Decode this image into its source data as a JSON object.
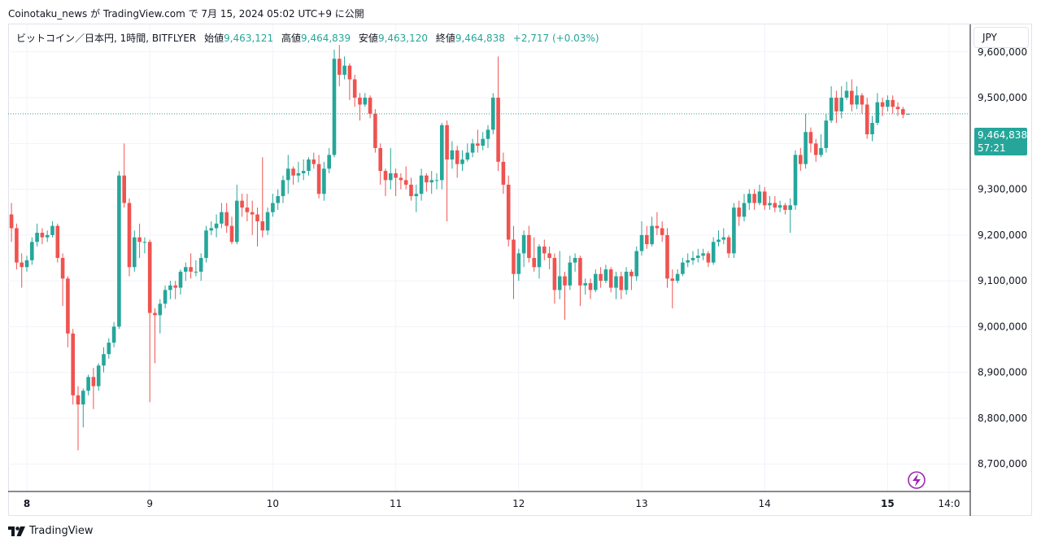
{
  "header": {
    "text": "Coinotaku_news が TradingView.com で 7月 15, 2024 05:02 UTC+9 に公開"
  },
  "legend": {
    "symbol": "ビットコイン／日本円, 1時間, BITFLYER",
    "open_label": "始値",
    "open": "9,463,121",
    "high_label": "高値",
    "high": "9,464,839",
    "low_label": "安値",
    "low": "9,463,120",
    "close_label": "終値",
    "close": "9,464,838",
    "change": "+2,717 (+0.03%)"
  },
  "currency_button": "JPY",
  "price_tag": {
    "price": "9,464,838",
    "countdown": "57:21"
  },
  "footer": {
    "brand": "TradingView",
    "logo_icon": "tradingview-logo-icon"
  },
  "colors": {
    "up": "#26a69a",
    "down": "#ef5350",
    "grid": "#f0f3fa",
    "axis": "#131722"
  },
  "chart_data": {
    "type": "candlestick",
    "title": "ビットコイン／日本円, 1時間, BITFLYER",
    "y_tick_labels": [
      "9,600,000",
      "9,500,000",
      "9,400,000",
      "9,300,000",
      "9,200,000",
      "9,100,000",
      "9,000,000",
      "8,900,000",
      "8,800,000",
      "8,700,000"
    ],
    "y_ticks": [
      9600000,
      9500000,
      9400000,
      9300000,
      9200000,
      9100000,
      9000000,
      8900000,
      8800000,
      8700000
    ],
    "ylim": [
      8640000,
      9660000
    ],
    "x_tick_labels": [
      "8",
      "9",
      "10",
      "11",
      "12",
      "13",
      "14",
      "15",
      "14:0"
    ],
    "x_tick_positions_hours": [
      0,
      24,
      48,
      72,
      96,
      120,
      144,
      168,
      180
    ],
    "bold_x_labels": [
      "8",
      "15"
    ],
    "last_price": 9464838,
    "candles": [
      [
        9245000,
        9215000,
        9270000,
        9185000
      ],
      [
        9215000,
        9140000,
        9225000,
        9125000
      ],
      [
        9140000,
        9130000,
        9160000,
        9085000
      ],
      [
        9130000,
        9145000,
        9155000,
        9120000
      ],
      [
        9145000,
        9185000,
        9195000,
        9135000
      ],
      [
        9185000,
        9205000,
        9225000,
        9175000
      ],
      [
        9205000,
        9195000,
        9215000,
        9180000
      ],
      [
        9195000,
        9200000,
        9210000,
        9185000
      ],
      [
        9200000,
        9220000,
        9230000,
        9195000
      ],
      [
        9220000,
        9150000,
        9225000,
        9140000
      ],
      [
        9150000,
        9105000,
        9160000,
        9045000
      ],
      [
        9105000,
        8985000,
        9110000,
        8955000
      ],
      [
        8985000,
        8850000,
        8995000,
        8830000
      ],
      [
        8850000,
        8830000,
        8870000,
        8730000
      ],
      [
        8830000,
        8860000,
        8865000,
        8780000
      ],
      [
        8860000,
        8890000,
        8895000,
        8850000
      ],
      [
        8890000,
        8870000,
        8910000,
        8820000
      ],
      [
        8870000,
        8915000,
        8920000,
        8860000
      ],
      [
        8915000,
        8940000,
        8955000,
        8900000
      ],
      [
        8940000,
        8965000,
        8975000,
        8930000
      ],
      [
        8965000,
        9000000,
        9010000,
        8955000
      ],
      [
        9000000,
        9330000,
        9340000,
        8995000
      ],
      [
        9330000,
        9270000,
        9400000,
        9260000
      ],
      [
        9270000,
        9130000,
        9280000,
        9110000
      ],
      [
        9130000,
        9195000,
        9210000,
        9120000
      ],
      [
        9195000,
        9185000,
        9225000,
        9150000
      ],
      [
        9185000,
        9185000,
        9195000,
        9160000
      ],
      [
        9185000,
        9030000,
        9190000,
        8835000
      ],
      [
        9030000,
        9025000,
        9040000,
        8920000
      ],
      [
        9025000,
        9050000,
        9060000,
        8985000
      ],
      [
        9050000,
        9080000,
        9090000,
        9040000
      ],
      [
        9080000,
        9090000,
        9100000,
        9060000
      ],
      [
        9090000,
        9085000,
        9100000,
        9060000
      ],
      [
        9085000,
        9120000,
        9125000,
        9070000
      ],
      [
        9120000,
        9130000,
        9140000,
        9100000
      ],
      [
        9130000,
        9120000,
        9160000,
        9105000
      ],
      [
        9120000,
        9120000,
        9145000,
        9110000
      ],
      [
        9120000,
        9150000,
        9160000,
        9100000
      ],
      [
        9150000,
        9210000,
        9220000,
        9140000
      ],
      [
        9210000,
        9215000,
        9230000,
        9200000
      ],
      [
        9215000,
        9225000,
        9245000,
        9195000
      ],
      [
        9225000,
        9250000,
        9270000,
        9215000
      ],
      [
        9250000,
        9220000,
        9270000,
        9205000
      ],
      [
        9220000,
        9185000,
        9240000,
        9180000
      ],
      [
        9185000,
        9275000,
        9310000,
        9180000
      ],
      [
        9275000,
        9260000,
        9290000,
        9240000
      ],
      [
        9260000,
        9250000,
        9290000,
        9230000
      ],
      [
        9250000,
        9245000,
        9275000,
        9200000
      ],
      [
        9245000,
        9230000,
        9260000,
        9175000
      ],
      [
        9230000,
        9210000,
        9370000,
        9195000
      ],
      [
        9210000,
        9250000,
        9260000,
        9200000
      ],
      [
        9250000,
        9270000,
        9290000,
        9240000
      ],
      [
        9270000,
        9285000,
        9300000,
        9255000
      ],
      [
        9285000,
        9320000,
        9330000,
        9270000
      ],
      [
        9320000,
        9345000,
        9375000,
        9290000
      ],
      [
        9345000,
        9330000,
        9350000,
        9310000
      ],
      [
        9330000,
        9335000,
        9360000,
        9315000
      ],
      [
        9335000,
        9340000,
        9365000,
        9320000
      ],
      [
        9340000,
        9365000,
        9370000,
        9330000
      ],
      [
        9365000,
        9355000,
        9380000,
        9345000
      ],
      [
        9355000,
        9290000,
        9375000,
        9280000
      ],
      [
        9290000,
        9345000,
        9360000,
        9275000
      ],
      [
        9345000,
        9375000,
        9390000,
        9335000
      ],
      [
        9375000,
        9585000,
        9605000,
        9370000
      ],
      [
        9585000,
        9550000,
        9615000,
        9525000
      ],
      [
        9550000,
        9570000,
        9590000,
        9540000
      ],
      [
        9570000,
        9540000,
        9575000,
        9495000
      ],
      [
        9540000,
        9500000,
        9550000,
        9480000
      ],
      [
        9500000,
        9485000,
        9510000,
        9450000
      ],
      [
        9485000,
        9500000,
        9510000,
        9480000
      ],
      [
        9500000,
        9465000,
        9505000,
        9455000
      ],
      [
        9465000,
        9390000,
        9475000,
        9380000
      ],
      [
        9390000,
        9340000,
        9400000,
        9310000
      ],
      [
        9340000,
        9320000,
        9345000,
        9285000
      ],
      [
        9320000,
        9335000,
        9390000,
        9300000
      ],
      [
        9335000,
        9325000,
        9345000,
        9285000
      ],
      [
        9325000,
        9320000,
        9335000,
        9300000
      ],
      [
        9320000,
        9310000,
        9350000,
        9300000
      ],
      [
        9310000,
        9285000,
        9325000,
        9275000
      ],
      [
        9285000,
        9290000,
        9310000,
        9250000
      ],
      [
        9290000,
        9330000,
        9345000,
        9275000
      ],
      [
        9330000,
        9315000,
        9335000,
        9295000
      ],
      [
        9315000,
        9320000,
        9340000,
        9290000
      ],
      [
        9320000,
        9320000,
        9335000,
        9300000
      ],
      [
        9320000,
        9440000,
        9445000,
        9300000
      ],
      [
        9440000,
        9365000,
        9450000,
        9230000
      ],
      [
        9365000,
        9385000,
        9405000,
        9345000
      ],
      [
        9385000,
        9355000,
        9395000,
        9325000
      ],
      [
        9355000,
        9365000,
        9385000,
        9340000
      ],
      [
        9365000,
        9380000,
        9400000,
        9360000
      ],
      [
        9380000,
        9400000,
        9410000,
        9370000
      ],
      [
        9400000,
        9395000,
        9430000,
        9380000
      ],
      [
        9395000,
        9410000,
        9425000,
        9385000
      ],
      [
        9410000,
        9430000,
        9440000,
        9390000
      ],
      [
        9430000,
        9500000,
        9510000,
        9420000
      ],
      [
        9500000,
        9360000,
        9590000,
        9340000
      ],
      [
        9360000,
        9310000,
        9380000,
        9290000
      ],
      [
        9310000,
        9190000,
        9330000,
        9175000
      ],
      [
        9190000,
        9115000,
        9220000,
        9060000
      ],
      [
        9115000,
        9160000,
        9170000,
        9100000
      ],
      [
        9160000,
        9200000,
        9210000,
        9130000
      ],
      [
        9200000,
        9150000,
        9220000,
        9140000
      ],
      [
        9150000,
        9130000,
        9195000,
        9120000
      ],
      [
        9130000,
        9175000,
        9180000,
        9105000
      ],
      [
        9175000,
        9160000,
        9190000,
        9145000
      ],
      [
        9160000,
        9150000,
        9175000,
        9125000
      ],
      [
        9150000,
        9080000,
        9160000,
        9050000
      ],
      [
        9080000,
        9110000,
        9165000,
        9060000
      ],
      [
        9110000,
        9090000,
        9120000,
        9015000
      ],
      [
        9090000,
        9140000,
        9155000,
        9080000
      ],
      [
        9140000,
        9150000,
        9160000,
        9120000
      ],
      [
        9150000,
        9090000,
        9155000,
        9045000
      ],
      [
        9090000,
        9095000,
        9105000,
        9070000
      ],
      [
        9095000,
        9080000,
        9105000,
        9060000
      ],
      [
        9080000,
        9115000,
        9125000,
        9075000
      ],
      [
        9115000,
        9100000,
        9130000,
        9085000
      ],
      [
        9100000,
        9125000,
        9135000,
        9095000
      ],
      [
        9125000,
        9085000,
        9130000,
        9075000
      ],
      [
        9085000,
        9110000,
        9120000,
        9060000
      ],
      [
        9110000,
        9080000,
        9120000,
        9060000
      ],
      [
        9080000,
        9120000,
        9130000,
        9070000
      ],
      [
        9120000,
        9110000,
        9125000,
        9080000
      ],
      [
        9110000,
        9165000,
        9175000,
        9100000
      ],
      [
        9165000,
        9200000,
        9230000,
        9155000
      ],
      [
        9200000,
        9180000,
        9220000,
        9170000
      ],
      [
        9180000,
        9220000,
        9240000,
        9175000
      ],
      [
        9220000,
        9215000,
        9250000,
        9200000
      ],
      [
        9215000,
        9200000,
        9230000,
        9185000
      ],
      [
        9200000,
        9105000,
        9215000,
        9085000
      ],
      [
        9105000,
        9100000,
        9125000,
        9040000
      ],
      [
        9100000,
        9115000,
        9125000,
        9095000
      ],
      [
        9115000,
        9140000,
        9150000,
        9110000
      ],
      [
        9140000,
        9145000,
        9160000,
        9130000
      ],
      [
        9145000,
        9150000,
        9165000,
        9135000
      ],
      [
        9150000,
        9155000,
        9170000,
        9140000
      ],
      [
        9155000,
        9160000,
        9170000,
        9145000
      ],
      [
        9160000,
        9140000,
        9165000,
        9130000
      ],
      [
        9140000,
        9185000,
        9195000,
        9135000
      ],
      [
        9185000,
        9190000,
        9210000,
        9175000
      ],
      [
        9190000,
        9195000,
        9215000,
        9180000
      ],
      [
        9195000,
        9160000,
        9200000,
        9150000
      ],
      [
        9160000,
        9260000,
        9270000,
        9150000
      ],
      [
        9260000,
        9240000,
        9275000,
        9220000
      ],
      [
        9240000,
        9270000,
        9290000,
        9230000
      ],
      [
        9270000,
        9290000,
        9300000,
        9255000
      ],
      [
        9290000,
        9270000,
        9300000,
        9255000
      ],
      [
        9270000,
        9295000,
        9310000,
        9265000
      ],
      [
        9295000,
        9265000,
        9305000,
        9255000
      ],
      [
        9265000,
        9270000,
        9285000,
        9255000
      ],
      [
        9270000,
        9260000,
        9285000,
        9250000
      ],
      [
        9260000,
        9265000,
        9275000,
        9250000
      ],
      [
        9265000,
        9255000,
        9270000,
        9245000
      ],
      [
        9255000,
        9265000,
        9280000,
        9205000
      ],
      [
        9265000,
        9375000,
        9385000,
        9255000
      ],
      [
        9375000,
        9355000,
        9390000,
        9340000
      ],
      [
        9355000,
        9425000,
        9465000,
        9345000
      ],
      [
        9425000,
        9400000,
        9435000,
        9380000
      ],
      [
        9400000,
        9375000,
        9410000,
        9360000
      ],
      [
        9375000,
        9390000,
        9420000,
        9370000
      ],
      [
        9390000,
        9450000,
        9465000,
        9380000
      ],
      [
        9450000,
        9500000,
        9525000,
        9445000
      ],
      [
        9500000,
        9470000,
        9515000,
        9445000
      ],
      [
        9470000,
        9500000,
        9525000,
        9455000
      ],
      [
        9500000,
        9515000,
        9535000,
        9495000
      ],
      [
        9515000,
        9485000,
        9540000,
        9470000
      ],
      [
        9485000,
        9505000,
        9525000,
        9475000
      ],
      [
        9505000,
        9485000,
        9510000,
        9465000
      ],
      [
        9485000,
        9420000,
        9500000,
        9410000
      ],
      [
        9420000,
        9445000,
        9460000,
        9405000
      ],
      [
        9445000,
        9490000,
        9510000,
        9440000
      ],
      [
        9490000,
        9480000,
        9500000,
        9460000
      ],
      [
        9480000,
        9495000,
        9505000,
        9470000
      ],
      [
        9495000,
        9480000,
        9505000,
        9465000
      ],
      [
        9480000,
        9475000,
        9490000,
        9460000
      ],
      [
        9475000,
        9463000,
        9480000,
        9455000
      ],
      [
        9463121,
        9464838,
        9464839,
        9463120
      ]
    ]
  }
}
